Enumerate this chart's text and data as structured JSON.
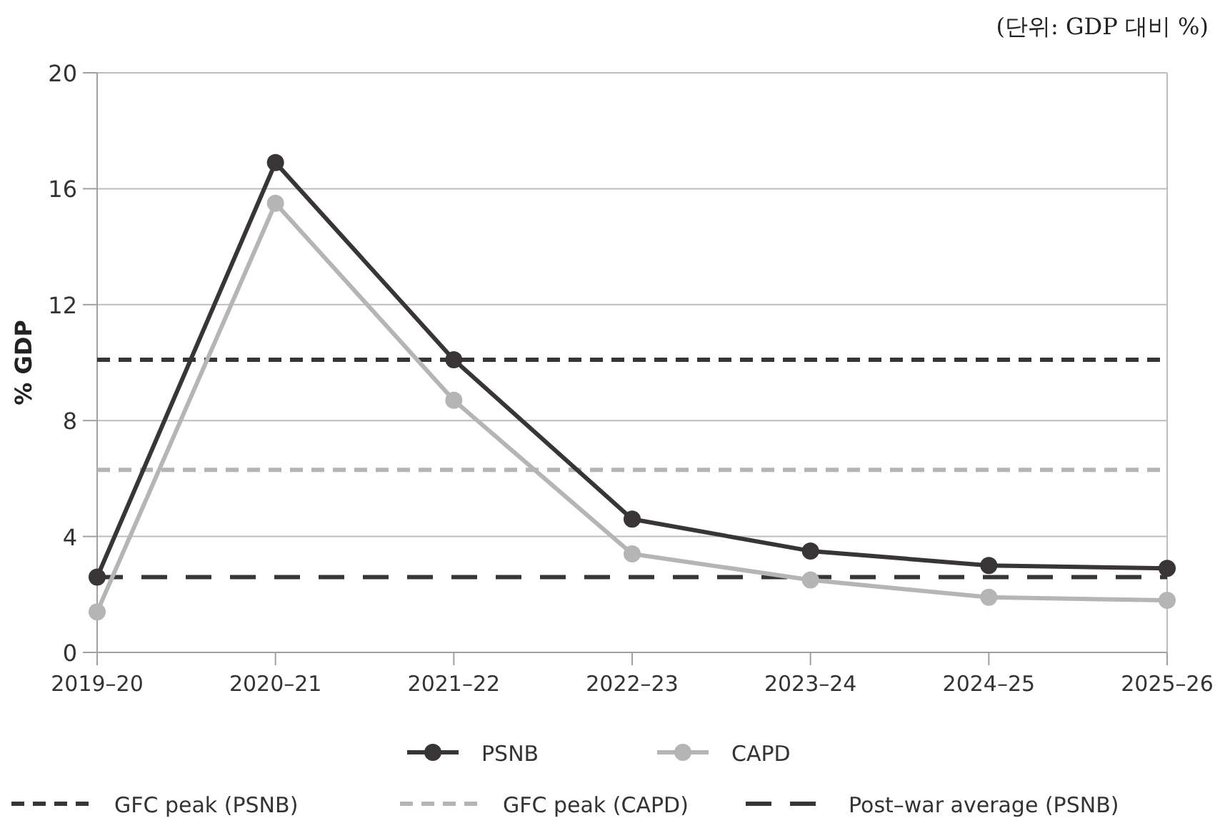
{
  "chart_data": {
    "type": "line",
    "subtitle": "(단위: GDP 대비 %)",
    "ylabel": "% GDP",
    "categories": [
      "2019–20",
      "2020–21",
      "2021–22",
      "2022–23",
      "2023–24",
      "2024–25",
      "2025–26"
    ],
    "series": [
      {
        "name": "PSNB",
        "color": "#383536",
        "values": [
          2.6,
          16.9,
          10.1,
          4.6,
          3.5,
          3.0,
          2.9
        ]
      },
      {
        "name": "CAPD",
        "color": "#b5b5b5",
        "values": [
          1.4,
          15.5,
          8.7,
          3.4,
          2.5,
          1.9,
          1.8
        ]
      }
    ],
    "ref_lines": [
      {
        "axis": "y",
        "value": 10.1,
        "label": "GFC peak (PSNB)",
        "color": "#383536",
        "line_style": "dashed"
      },
      {
        "axis": "y",
        "value": 6.3,
        "label": "GFC peak (CAPD)",
        "color": "#b5b5b5",
        "line_style": "dashed"
      },
      {
        "axis": "y",
        "value": 2.6,
        "label": "Post–war average (PSNB)",
        "color": "#383536",
        "line_style": "longdash"
      }
    ],
    "ylim": [
      0,
      20
    ],
    "yticks": [
      0,
      4,
      8,
      12,
      16,
      20
    ],
    "grid": "y",
    "legend": "bottom",
    "marker": "circle",
    "line_style": "solid"
  }
}
